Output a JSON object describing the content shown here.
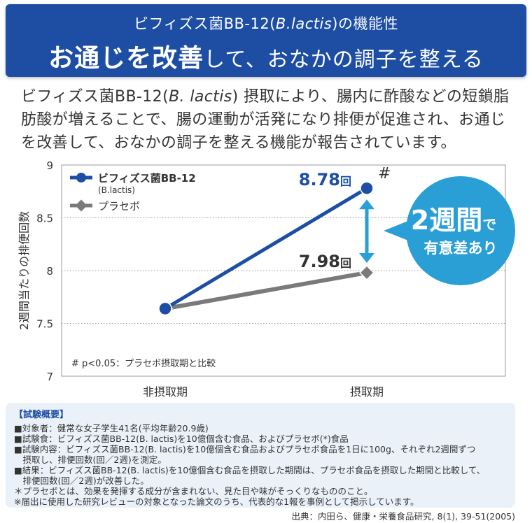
{
  "header": {
    "subtitle_pre": "ビフィズス菌BB-12(",
    "subtitle_italic": "B.lactis",
    "subtitle_post": ")の機能性",
    "title_bold": "お通じを改善",
    "title_rest": "して、おなかの調子を整える"
  },
  "lead": {
    "pre": "ビフィズス菌BB-12(",
    "italic": "B. lactis",
    "post": ") 摂取により、腸内に酢酸などの短鎖脂肪酸が増えることで、腸の運動が活発になり排便が促進され、お通じを改善して、おなかの調子を整える機能が報告されています。"
  },
  "chart_data": {
    "type": "line",
    "ylabel": "2週間当たりの排便回数",
    "categories": [
      "非摂取期",
      "摂取期"
    ],
    "ylim": [
      7,
      9
    ],
    "yticks": [
      "9",
      "8.5",
      "8",
      "7.5",
      "7"
    ],
    "series": [
      {
        "name": "ビフィズス菌BB-12",
        "name_sub": "(B.lactis)",
        "values": [
          7.64,
          8.78
        ],
        "color": "#1d4ea3",
        "marker": "circle"
      },
      {
        "name": "プラセボ",
        "values": [
          7.64,
          7.98
        ],
        "color": "#7a7a7a",
        "marker": "diamond"
      }
    ],
    "value_labels": [
      {
        "series": 0,
        "value_text": "8.78",
        "unit": "回",
        "color": "#1d4ea3"
      },
      {
        "series": 1,
        "value_text": "7.98",
        "unit": "回",
        "color": "#333333"
      }
    ],
    "significance_mark": "#",
    "footnote": "#  p<0.05：プラセボ摂取期と比較",
    "callout": {
      "big": "2週間",
      "small": "で",
      "line2": "有意差あり",
      "color": "#2a9fd6"
    },
    "legend": "top-left",
    "grid": true
  },
  "summary": {
    "title": "【試験概要】",
    "lines": [
      "■対象者：健常な女子学生41名(平均年齢20.9歳)",
      "■試験食：ビフィズス菌BB-12(B. lactis)を10億個含む食品、およびプラセボ(*)食品",
      "■試験内容：ビフィズス菌BB-12(B. lactis)を10億個含む食品およびプラセボ食品を1日に100g、それぞれ2週間ずつ",
      "　摂取し、排便回数(回／2週)を測定。",
      "■結果：ビフィズス菌BB-12(B. lactis)を10億個含む食品を摂取した期間は、プラセボ食品を摂取した期間と比較して、",
      "　排便回数(回／2週)が改善した。",
      "＊プラセボとは、効果を発揮する成分が含まれない、見た目や味がそっくりなもののこと。",
      "※届出に使用した研究レビューの対象となった論文のうち、代表的な1報を事例として掲示しています。"
    ]
  },
  "source": "出典：内田ら、健康・栄養食品研究, 8(1), 39-51(2005)"
}
